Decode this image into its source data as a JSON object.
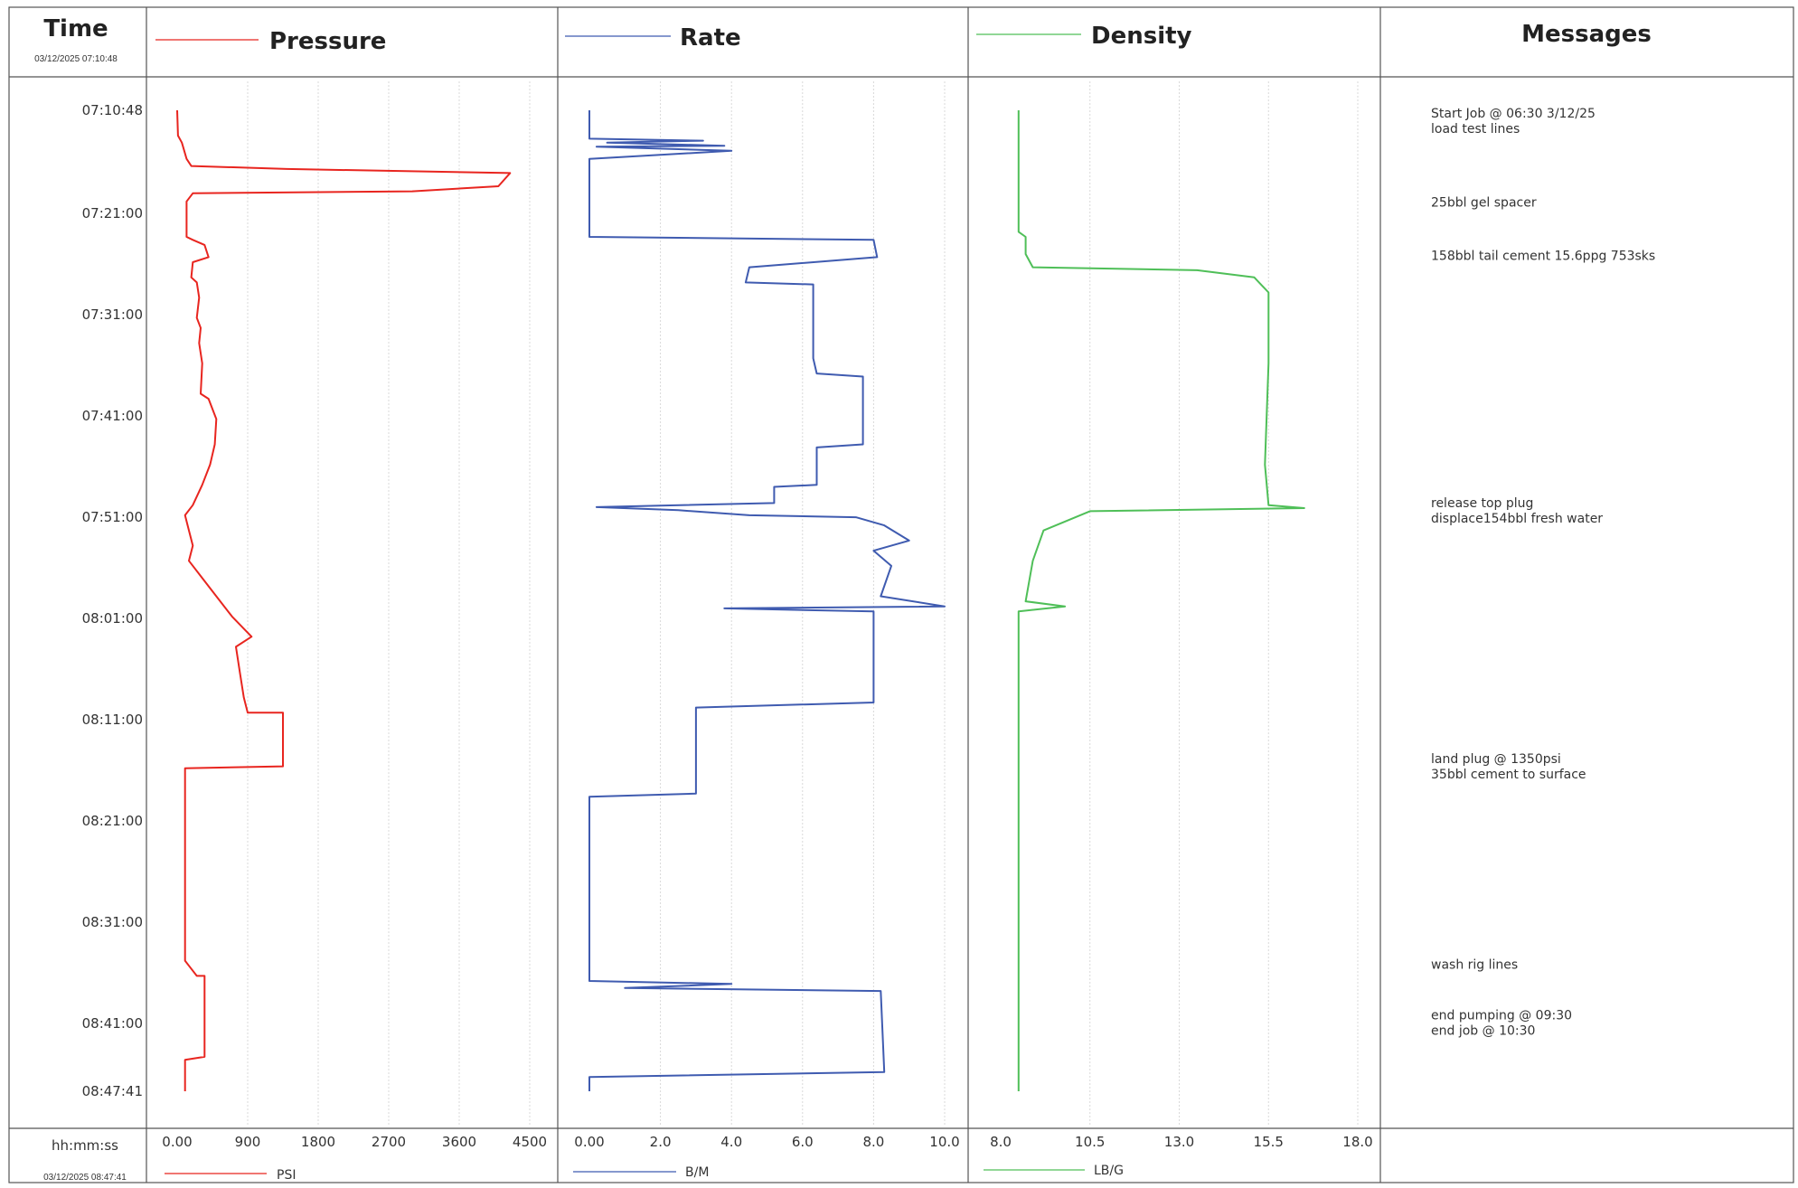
{
  "header": {
    "time_title": "Time",
    "start_stamp": "03/12/2025 07:10:48",
    "end_stamp": "03/12/2025 08:47:41",
    "time_unit": "hh:mm:ss",
    "messages_title": "Messages"
  },
  "time_labels": [
    "07:10:48",
    "07:21:00",
    "07:31:00",
    "07:41:00",
    "07:51:00",
    "08:01:00",
    "08:11:00",
    "08:21:00",
    "08:31:00",
    "08:41:00",
    "08:47:41"
  ],
  "messages": [
    {
      "time_min": 0.7,
      "lines": [
        "Start Job @ 06:30 3/12/25",
        "load test lines"
      ]
    },
    {
      "time_min": 9.5,
      "lines": [
        "25bbl gel spacer"
      ]
    },
    {
      "time_min": 14.8,
      "lines": [
        "158bbl tail cement 15.6ppg 753sks"
      ]
    },
    {
      "time_min": 39.2,
      "lines": [
        "release top plug",
        " displace154bbl fresh water"
      ]
    },
    {
      "time_min": 64.5,
      "lines": [
        "land plug @ 1350psi",
        "35bbl cement to surface"
      ]
    },
    {
      "time_min": 84.8,
      "lines": [
        "wash rig lines"
      ]
    },
    {
      "time_min": 89.8,
      "lines": [
        "end pumping @ 09:30",
        "end job @ 10:30"
      ]
    }
  ],
  "chart_data": [
    {
      "type": "line",
      "title": "Pressure",
      "unit": "PSI",
      "color": "#e8251f",
      "xlim": [
        0,
        4500
      ],
      "xticks": [
        "0.00",
        "900",
        "1800",
        "2700",
        "3600",
        "4500"
      ],
      "y_unit": "minutes after 07:10:48",
      "ylim": [
        0,
        96.9
      ],
      "points": [
        [
          0,
          0
        ],
        [
          10,
          2.5
        ],
        [
          60,
          3.2
        ],
        [
          120,
          4.8
        ],
        [
          180,
          5.5
        ],
        [
          1400,
          5.8
        ],
        [
          4250,
          6.2
        ],
        [
          4100,
          7.5
        ],
        [
          3000,
          8.0
        ],
        [
          200,
          8.2
        ],
        [
          120,
          9.0
        ],
        [
          120,
          12.5
        ],
        [
          200,
          12.8
        ],
        [
          350,
          13.3
        ],
        [
          400,
          14.5
        ],
        [
          200,
          15.0
        ],
        [
          180,
          16.5
        ],
        [
          250,
          17.0
        ],
        [
          280,
          18.5
        ],
        [
          250,
          20.5
        ],
        [
          300,
          21.5
        ],
        [
          280,
          23.0
        ],
        [
          320,
          25.0
        ],
        [
          300,
          28.0
        ],
        [
          400,
          28.5
        ],
        [
          500,
          30.5
        ],
        [
          480,
          33.0
        ],
        [
          420,
          35.0
        ],
        [
          320,
          37.0
        ],
        [
          200,
          39.0
        ],
        [
          100,
          40.0
        ],
        [
          150,
          41.5
        ],
        [
          200,
          43.0
        ],
        [
          150,
          44.5
        ],
        [
          300,
          46.0
        ],
        [
          500,
          48.0
        ],
        [
          700,
          50.0
        ],
        [
          950,
          52.0
        ],
        [
          750,
          53.0
        ],
        [
          800,
          55.5
        ],
        [
          850,
          58.0
        ],
        [
          900,
          59.5
        ],
        [
          1350,
          59.5
        ],
        [
          1350,
          64.8
        ],
        [
          100,
          65.0
        ],
        [
          100,
          68.0
        ],
        [
          100,
          84.0
        ],
        [
          150,
          84.5
        ],
        [
          250,
          85.5
        ],
        [
          350,
          85.5
        ],
        [
          350,
          93.5
        ],
        [
          100,
          93.8
        ],
        [
          100,
          96.9
        ]
      ]
    },
    {
      "type": "line",
      "title": "Rate",
      "unit": "B/M",
      "color": "#3f5bb0",
      "xlim": [
        0,
        10
      ],
      "xticks": [
        "0.00",
        "2.0",
        "4.0",
        "6.0",
        "8.0",
        "10.0"
      ],
      "y_unit": "minutes after 07:10:48",
      "ylim": [
        0,
        96.9
      ],
      "points": [
        [
          0,
          0
        ],
        [
          0,
          2.8
        ],
        [
          3.2,
          3.0
        ],
        [
          0.5,
          3.2
        ],
        [
          3.8,
          3.5
        ],
        [
          0.2,
          3.6
        ],
        [
          4.0,
          4.0
        ],
        [
          0,
          4.8
        ],
        [
          0,
          12.5
        ],
        [
          8.0,
          12.8
        ],
        [
          8.1,
          14.5
        ],
        [
          4.5,
          15.5
        ],
        [
          4.4,
          17.0
        ],
        [
          6.3,
          17.2
        ],
        [
          6.3,
          24.5
        ],
        [
          6.4,
          26.0
        ],
        [
          7.7,
          26.3
        ],
        [
          7.7,
          33.0
        ],
        [
          6.4,
          33.3
        ],
        [
          6.4,
          37.0
        ],
        [
          5.2,
          37.2
        ],
        [
          5.2,
          38.8
        ],
        [
          0.2,
          39.2
        ],
        [
          2.5,
          39.5
        ],
        [
          4.5,
          40.0
        ],
        [
          7.5,
          40.2
        ],
        [
          8.3,
          41.0
        ],
        [
          9.0,
          42.5
        ],
        [
          8.0,
          43.5
        ],
        [
          8.5,
          45.0
        ],
        [
          8.2,
          48.0
        ],
        [
          10.0,
          49.0
        ],
        [
          3.8,
          49.2
        ],
        [
          8.0,
          49.5
        ],
        [
          8.0,
          58.5
        ],
        [
          3.0,
          59.0
        ],
        [
          3.0,
          67.5
        ],
        [
          0,
          67.8
        ],
        [
          0,
          86.0
        ],
        [
          4.0,
          86.3
        ],
        [
          1.0,
          86.7
        ],
        [
          8.2,
          87.0
        ],
        [
          8.3,
          95.0
        ],
        [
          0,
          95.5
        ],
        [
          0,
          96.9
        ]
      ]
    },
    {
      "type": "line",
      "title": "Density",
      "unit": "LB/G",
      "color": "#4fbf58",
      "xlim": [
        8.0,
        18.0
      ],
      "xticks": [
        "8.0",
        "10.5",
        "13.0",
        "15.5",
        "18.0"
      ],
      "y_unit": "minutes after 07:10:48",
      "ylim": [
        0,
        96.9
      ],
      "points": [
        [
          8.5,
          0
        ],
        [
          8.5,
          12.0
        ],
        [
          8.7,
          12.5
        ],
        [
          8.7,
          14.2
        ],
        [
          8.9,
          15.5
        ],
        [
          13.5,
          15.8
        ],
        [
          15.1,
          16.5
        ],
        [
          15.5,
          18.0
        ],
        [
          15.5,
          25.0
        ],
        [
          15.4,
          35.0
        ],
        [
          15.5,
          39.0
        ],
        [
          16.5,
          39.3
        ],
        [
          10.5,
          39.6
        ],
        [
          9.2,
          41.5
        ],
        [
          8.9,
          44.5
        ],
        [
          8.7,
          48.5
        ],
        [
          9.8,
          49.0
        ],
        [
          8.5,
          49.5
        ],
        [
          8.5,
          96.9
        ]
      ]
    }
  ]
}
